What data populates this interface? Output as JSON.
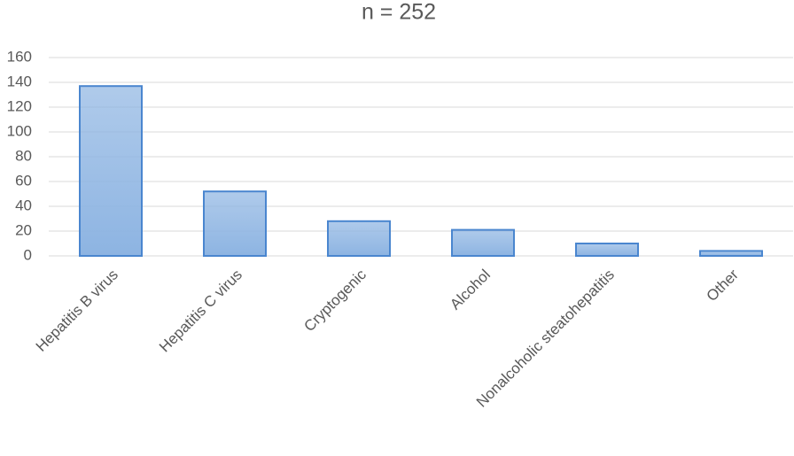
{
  "chart_data": {
    "type": "bar",
    "title": "n = 252",
    "categories": [
      "Hepatitis B virus",
      "Hepatitis C virus",
      "Cryptogenic",
      "Alcohol",
      "Nonalcoholic steatohepatitis",
      "Other"
    ],
    "values": [
      137,
      52,
      28,
      21,
      10,
      4
    ],
    "color": "#8db4e2",
    "ylim": [
      0,
      160
    ],
    "yticks": [
      0,
      20,
      40,
      60,
      80,
      100,
      120,
      140,
      160
    ],
    "grid": true
  }
}
